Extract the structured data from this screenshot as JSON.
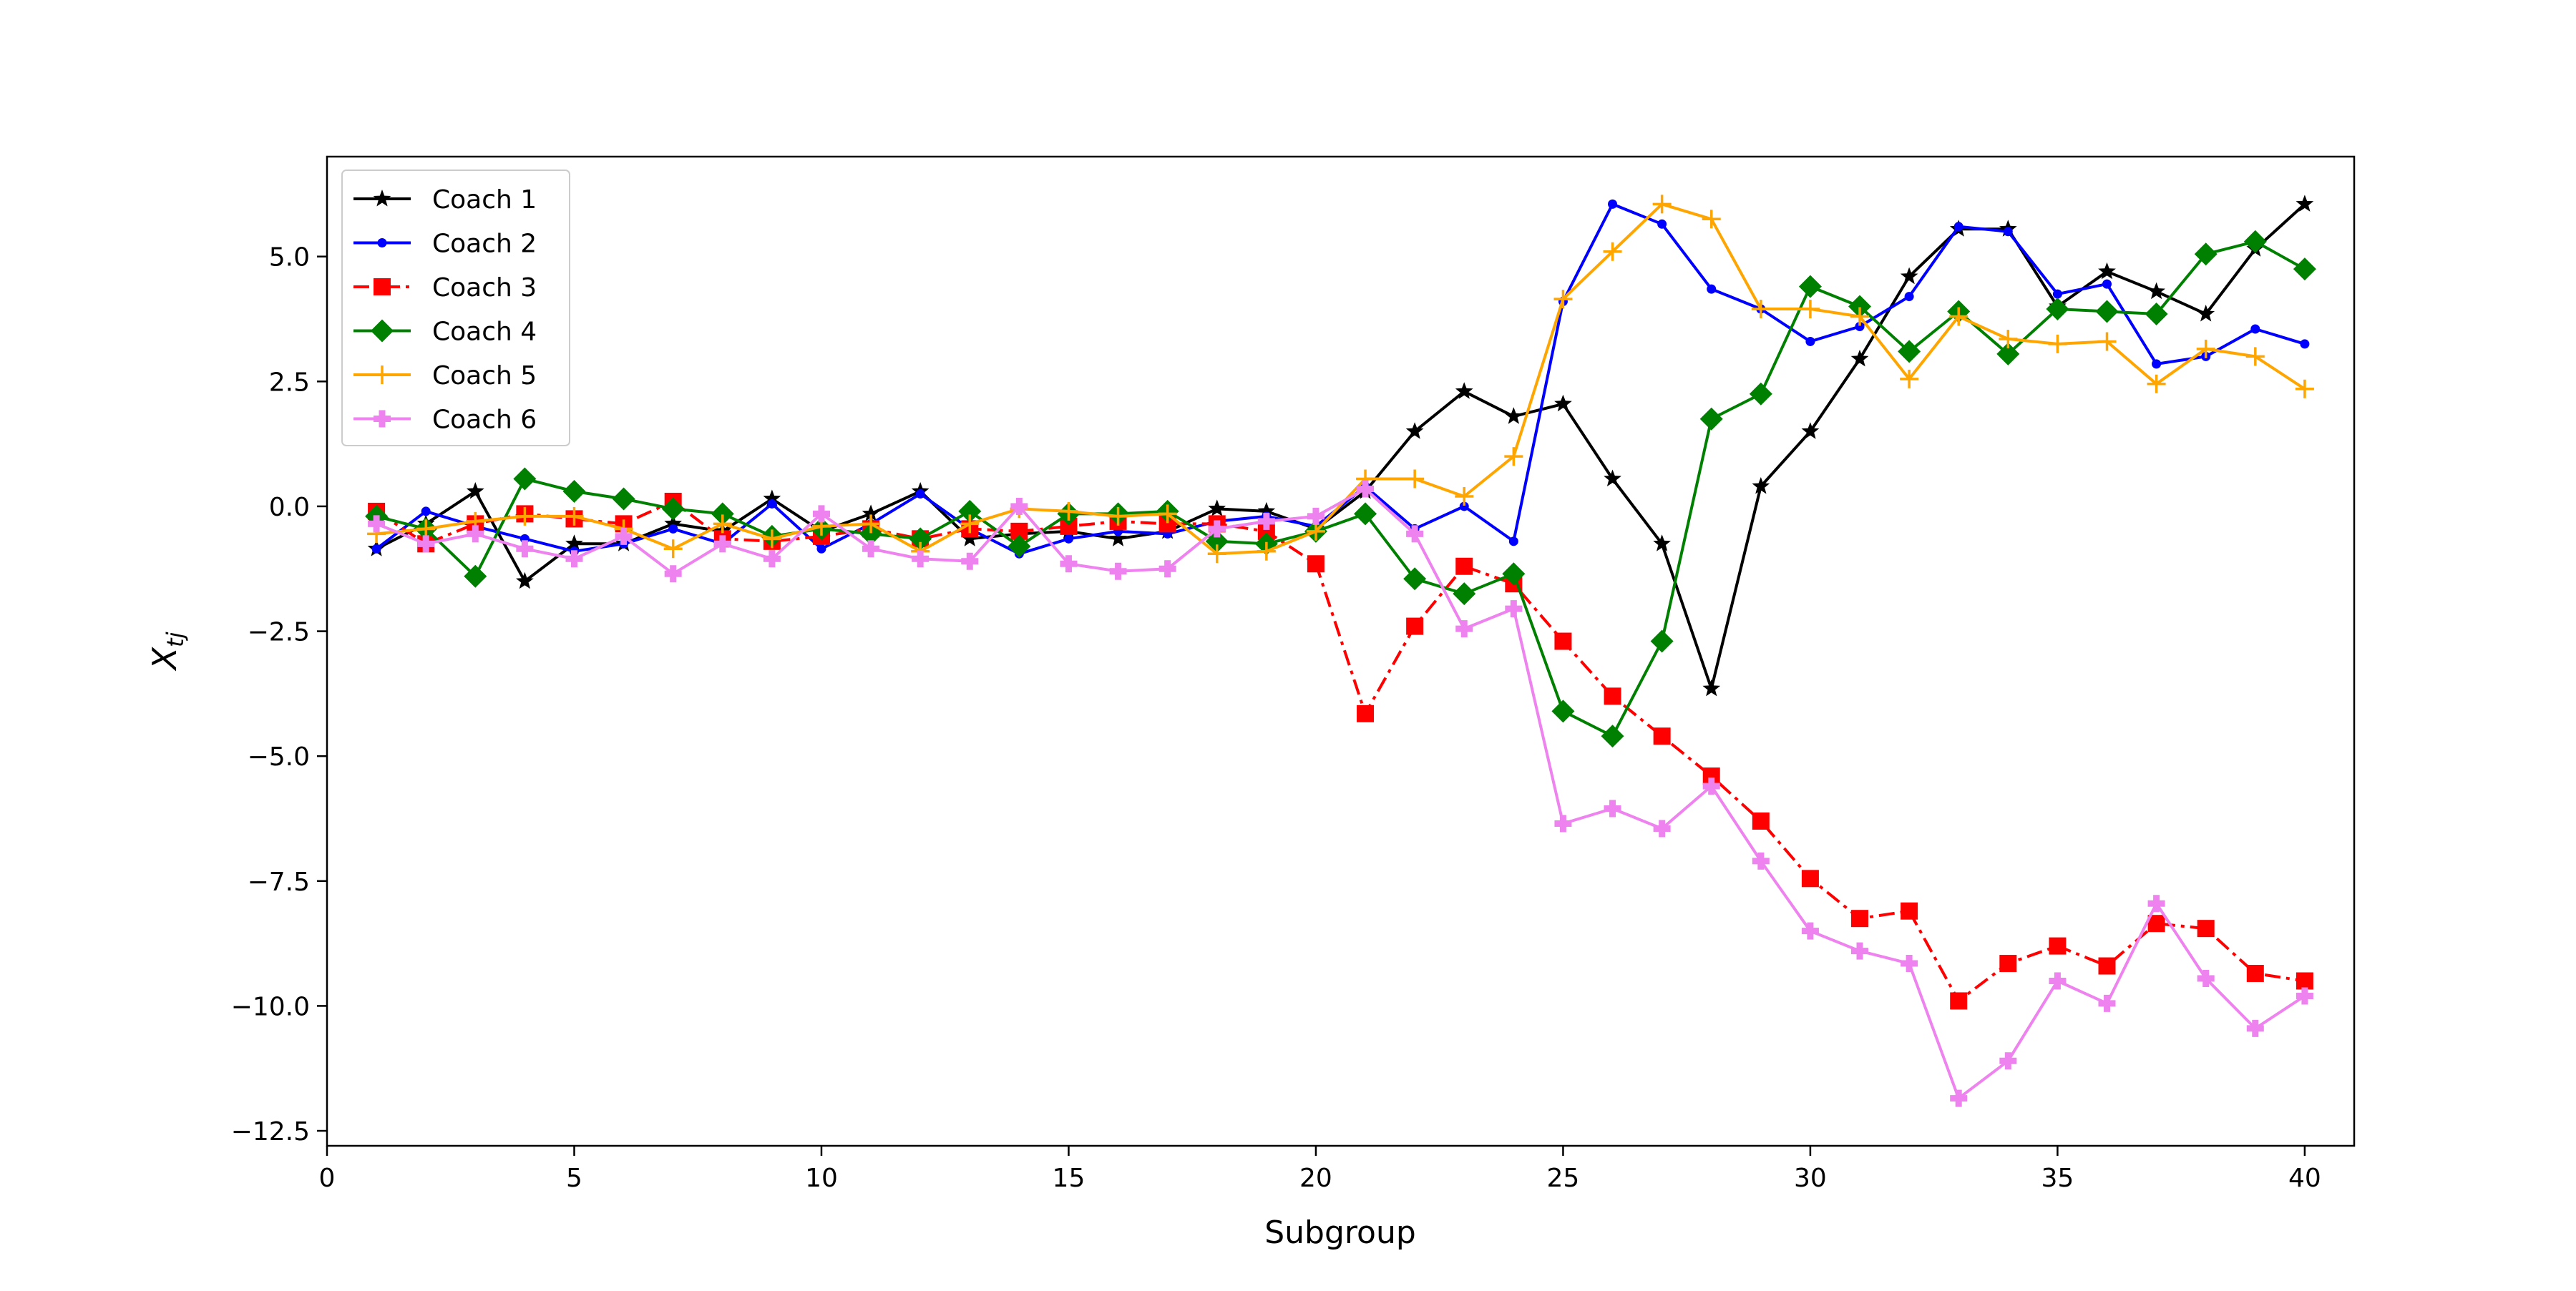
{
  "chart_data": {
    "type": "line",
    "title": "",
    "xlabel": "Subgroup",
    "ylabel": "X_tj",
    "ylabel_main": "X",
    "ylabel_sub": "tj",
    "xlim": [
      0,
      41
    ],
    "ylim": [
      -12.8,
      7.0
    ],
    "x_ticks": [
      0,
      5,
      10,
      15,
      20,
      25,
      30,
      35,
      40
    ],
    "x_tick_labels": [
      "0",
      "5",
      "10",
      "15",
      "20",
      "25",
      "30",
      "35",
      "40"
    ],
    "y_ticks": [
      5.0,
      2.5,
      0.0,
      -2.5,
      -5.0,
      -7.5,
      -10.0,
      -12.5
    ],
    "y_tick_labels": [
      "5.0",
      "2.5",
      "0.0",
      "−2.5",
      "−5.0",
      "−7.5",
      "−10.0",
      "−12.5"
    ],
    "grid": false,
    "legend_position": "top-left",
    "x": [
      1,
      2,
      3,
      4,
      5,
      6,
      7,
      8,
      9,
      10,
      11,
      12,
      13,
      14,
      15,
      16,
      17,
      18,
      19,
      20,
      21,
      22,
      23,
      24,
      25,
      26,
      27,
      28,
      29,
      30,
      31,
      32,
      33,
      34,
      35,
      36,
      37,
      38,
      39,
      40
    ],
    "series": [
      {
        "name": "Coach 1",
        "color": "#000000",
        "marker": "star",
        "dash": "solid",
        "values": [
          -0.85,
          -0.35,
          0.3,
          -1.5,
          -0.75,
          -0.75,
          -0.35,
          -0.5,
          0.15,
          -0.5,
          -0.15,
          0.3,
          -0.65,
          -0.55,
          -0.5,
          -0.65,
          -0.5,
          -0.05,
          -0.1,
          -0.45,
          0.3,
          1.5,
          2.3,
          1.8,
          2.05,
          0.55,
          -0.75,
          -3.65,
          0.4,
          1.5,
          2.95,
          4.6,
          5.55,
          5.55,
          4.0,
          4.7,
          4.3,
          3.85,
          5.15,
          6.05
        ]
      },
      {
        "name": "Coach 2",
        "color": "#0000ff",
        "marker": "dot",
        "dash": "solid",
        "values": [
          -0.85,
          -0.1,
          -0.4,
          -0.65,
          -0.9,
          -0.75,
          -0.45,
          -0.75,
          0.05,
          -0.85,
          -0.35,
          0.25,
          -0.45,
          -0.95,
          -0.65,
          -0.5,
          -0.55,
          -0.3,
          -0.2,
          -0.4,
          0.4,
          -0.45,
          0.0,
          -0.7,
          4.1,
          6.05,
          5.65,
          4.35,
          3.95,
          3.3,
          3.6,
          4.2,
          5.6,
          5.5,
          4.25,
          4.45,
          2.85,
          3.0,
          3.55,
          3.25
        ]
      },
      {
        "name": "Coach 3",
        "color": "#ff0000",
        "marker": "square",
        "dash": "dashdot",
        "values": [
          -0.1,
          -0.75,
          -0.35,
          -0.15,
          -0.25,
          -0.35,
          0.1,
          -0.65,
          -0.7,
          -0.6,
          -0.45,
          -0.65,
          -0.45,
          -0.5,
          -0.4,
          -0.3,
          -0.35,
          -0.35,
          -0.5,
          -1.15,
          -4.15,
          -2.4,
          -1.2,
          -1.55,
          -2.7,
          -3.8,
          -4.6,
          -5.4,
          -6.3,
          -7.45,
          -8.25,
          -8.1,
          -9.9,
          -9.15,
          -8.8,
          -9.2,
          -8.35,
          -8.45,
          -9.35,
          -9.5
        ]
      },
      {
        "name": "Coach 4",
        "color": "#008000",
        "marker": "diamond",
        "dash": "solid",
        "values": [
          -0.2,
          -0.45,
          -1.4,
          0.55,
          0.3,
          0.15,
          -0.05,
          -0.15,
          -0.6,
          -0.45,
          -0.55,
          -0.65,
          -0.1,
          -0.8,
          -0.15,
          -0.15,
          -0.1,
          -0.7,
          -0.75,
          -0.5,
          -0.15,
          -1.45,
          -1.75,
          -1.35,
          -4.1,
          -4.6,
          -2.7,
          1.75,
          2.25,
          4.4,
          4.0,
          3.1,
          3.9,
          3.05,
          3.95,
          3.9,
          3.85,
          5.05,
          5.3,
          4.75
        ]
      },
      {
        "name": "Coach 5",
        "color": "#ffa500",
        "marker": "plus",
        "dash": "solid",
        "values": [
          -0.55,
          -0.45,
          -0.3,
          -0.2,
          -0.2,
          -0.45,
          -0.85,
          -0.35,
          -0.65,
          -0.4,
          -0.35,
          -0.9,
          -0.35,
          -0.05,
          -0.1,
          -0.2,
          -0.15,
          -0.95,
          -0.9,
          -0.5,
          0.55,
          0.55,
          0.2,
          1.0,
          4.15,
          5.1,
          6.05,
          5.75,
          3.95,
          3.95,
          3.8,
          2.55,
          3.8,
          3.35,
          3.25,
          3.3,
          2.45,
          3.15,
          3.0,
          2.35
        ]
      },
      {
        "name": "Coach 6",
        "color": "#ee82ee",
        "marker": "pluscross",
        "dash": "solid",
        "values": [
          -0.35,
          -0.75,
          -0.55,
          -0.85,
          -1.05,
          -0.6,
          -1.35,
          -0.75,
          -1.05,
          -0.15,
          -0.85,
          -1.05,
          -1.1,
          0.0,
          -1.15,
          -1.3,
          -1.25,
          -0.45,
          -0.3,
          -0.2,
          0.35,
          -0.55,
          -2.45,
          -2.05,
          -6.35,
          -6.05,
          -6.45,
          -5.6,
          -7.1,
          -8.5,
          -8.9,
          -9.15,
          -11.85,
          -11.1,
          -9.5,
          -9.95,
          -7.95,
          -9.45,
          -10.45,
          -9.8
        ]
      }
    ]
  }
}
